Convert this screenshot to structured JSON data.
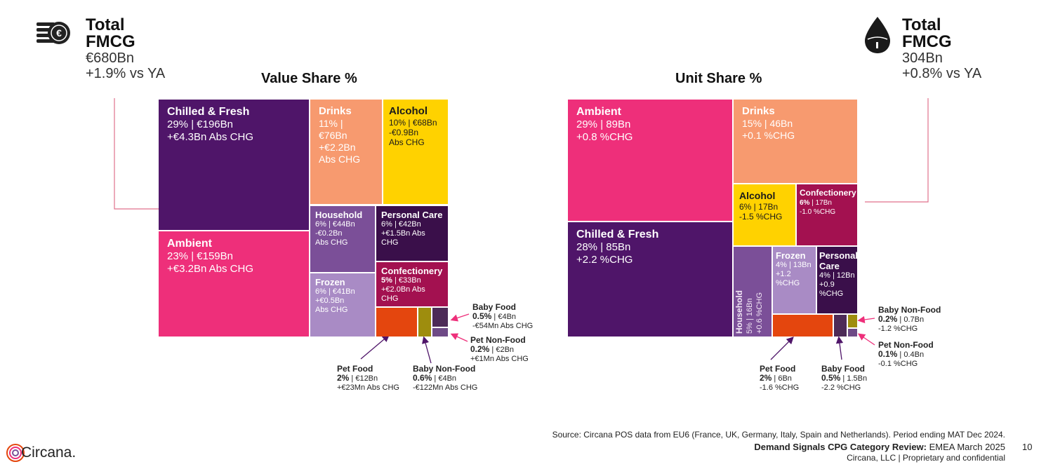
{
  "chart_data": [
    {
      "type": "treemap",
      "title": "Value Share %",
      "header": {
        "title_line1": "Total",
        "title_line2": "FMCG",
        "total": "€680Bn",
        "change": "+1.9% vs YA"
      },
      "items": [
        {
          "id": "chilled",
          "name": "Chilled & Fresh",
          "share_pct": 29,
          "share_label": "29%",
          "value_bn": 196,
          "value_label": "€196Bn",
          "change_label": "+€4.3Bn Abs CHG",
          "color": "#4f1569"
        },
        {
          "id": "ambient",
          "name": "Ambient",
          "share_pct": 23,
          "share_label": "23%",
          "value_bn": 159,
          "value_label": "€159Bn",
          "change_label": "+€3.2Bn Abs CHG",
          "color": "#ee2f7a"
        },
        {
          "id": "drinks",
          "name": "Drinks",
          "share_pct": 11,
          "share_label": "11%",
          "value_bn": 76,
          "value_label": "€76Bn",
          "change_label": "+€2.2Bn",
          "change_label2": "Abs CHG",
          "color": "#f79a6f"
        },
        {
          "id": "alcohol",
          "name": "Alcohol",
          "share_pct": 10,
          "share_label": "10%",
          "value_bn": 68,
          "value_label": "€68Bn",
          "change_label": "-€0.9Bn",
          "change_label2": "Abs CHG",
          "color": "#ffd200"
        },
        {
          "id": "household",
          "name": "Household",
          "share_pct": 6,
          "share_label": "6%",
          "value_bn": 44,
          "value_label": "€44Bn",
          "change_label": "-€0.2Bn",
          "change_label2": "Abs CHG",
          "color": "#7b4f98"
        },
        {
          "id": "personal",
          "name": "Personal Care",
          "share_pct": 6,
          "share_label": "6%",
          "value_bn": 42,
          "value_label": "€42Bn",
          "change_label": "+€1.5Bn Abs CHG",
          "color": "#3a0f4a"
        },
        {
          "id": "frozen",
          "name": "Frozen",
          "share_pct": 6,
          "share_label": "6%",
          "value_bn": 41,
          "value_label": "€41Bn",
          "change_label": "+€0.5Bn",
          "change_label2": "Abs CHG",
          "color": "#a98bc5"
        },
        {
          "id": "confectionery",
          "name": "Confectionery",
          "share_pct": 5,
          "share_label": "5%",
          "value_bn": 33,
          "value_label": "€33Bn",
          "change_label": "+€2.0Bn Abs CHG",
          "color": "#a31150"
        },
        {
          "id": "petfood",
          "name": "Pet Food",
          "share_pct": 2,
          "share_label": "2%",
          "value_bn": 12,
          "value_label": "€12Bn",
          "change_label": "+€23Mn Abs CHG",
          "color": "#e4460e"
        },
        {
          "id": "babynonfood",
          "name": "Baby Non-Food",
          "share_pct": 0.6,
          "share_label": "0.6%",
          "value_bn": 4,
          "value_label": "€4Bn",
          "change_label": "-€122Mn Abs CHG",
          "color": "#9e8d0e"
        },
        {
          "id": "babyfood",
          "name": "Baby Food",
          "share_pct": 0.5,
          "share_label": "0.5%",
          "value_bn": 4,
          "value_label": "€4Bn",
          "change_label": "-€54Mn Abs CHG",
          "color": "#4d2b57"
        },
        {
          "id": "petnonfood",
          "name": "Pet Non-Food",
          "share_pct": 0.2,
          "share_label": "0.2%",
          "value_bn": 2,
          "value_label": "€2Bn",
          "change_label": "+€1Mn Abs CHG",
          "color": "#6e4a86"
        }
      ]
    },
    {
      "type": "treemap",
      "title": "Unit Share %",
      "header": {
        "title_line1": "Total",
        "title_line2": "FMCG",
        "total": "304Bn",
        "change": "+0.8% vs YA"
      },
      "items": [
        {
          "id": "ambient",
          "name": "Ambient",
          "share_pct": 29,
          "share_label": "29%",
          "units_bn": 89,
          "units_label": "89Bn",
          "change_label": "+0.8 %CHG",
          "color": "#ee2f7a"
        },
        {
          "id": "chilled",
          "name": "Chilled & Fresh",
          "share_pct": 28,
          "share_label": "28%",
          "units_bn": 85,
          "units_label": "85Bn",
          "change_label": "+2.2 %CHG",
          "color": "#4f1569"
        },
        {
          "id": "drinks",
          "name": "Drinks",
          "share_pct": 15,
          "share_label": "15%",
          "units_bn": 46,
          "units_label": "46Bn",
          "change_label": "+0.1 %CHG",
          "color": "#f79a6f"
        },
        {
          "id": "alcohol",
          "name": "Alcohol",
          "share_pct": 6,
          "share_label": "6%",
          "units_bn": 17,
          "units_label": "17Bn",
          "change_label": "-1.5 %CHG",
          "color": "#ffd200"
        },
        {
          "id": "confectionery",
          "name": "Confectionery",
          "share_pct": 6,
          "share_label": "6%",
          "units_bn": 17,
          "units_label": "17Bn",
          "change_label": "-1.0 %CHG",
          "color": "#a31150"
        },
        {
          "id": "household",
          "name": "Household",
          "share_pct": 5,
          "share_label": "5%",
          "units_bn": 16,
          "units_label": "16Bn",
          "change_label": "+0.6 %CHG",
          "color": "#7b4f98"
        },
        {
          "id": "frozen",
          "name": "Frozen",
          "share_pct": 4,
          "share_label": "4%",
          "units_bn": 13,
          "units_label": "13Bn",
          "change_label": "+1.2 %CHG",
          "color": "#a98bc5"
        },
        {
          "id": "personal",
          "name": "Personal Care",
          "name_line1": "Personal",
          "name_line2": "Care",
          "share_pct": 4,
          "share_label": "4%",
          "units_bn": 12,
          "units_label": "12Bn",
          "change_label": "+0.9 %CHG",
          "color": "#3a0f4a"
        },
        {
          "id": "petfood",
          "name": "Pet Food",
          "share_pct": 2,
          "share_label": "2%",
          "units_bn": 6,
          "units_label": "6Bn",
          "change_label": "-1.6 %CHG",
          "color": "#e4460e"
        },
        {
          "id": "babyfood",
          "name": "Baby Food",
          "share_pct": 0.5,
          "share_label": "0.5%",
          "units_bn": 1.5,
          "units_label": "1.5Bn",
          "change_label": "-2.2 %CHG",
          "color": "#4d2b57"
        },
        {
          "id": "babynonfood",
          "name": "Baby Non-Food",
          "share_pct": 0.2,
          "share_label": "0.2%",
          "units_bn": 0.7,
          "units_label": "0.7Bn",
          "change_label": "-1.2 %CHG",
          "color": "#9e8d0e"
        },
        {
          "id": "petnonfood",
          "name": "Pet Non-Food",
          "share_pct": 0.1,
          "share_label": "0.1%",
          "units_bn": 0.4,
          "units_label": "0.4Bn",
          "change_label": "-0.1 %CHG",
          "color": "#6e4a86"
        }
      ]
    }
  ],
  "footer": {
    "source": "Source: Circana POS data from EU6 (France, UK, Germany, Italy, Spain and Netherlands). Period ending MAT Dec 2024.",
    "report_bold": "Demand Signals CPG Category Review:",
    "report_rest": " EMEA March 2025",
    "confidential": "Circana, LLC  |  Proprietary and confidential",
    "page_number": "10",
    "logo_text": "Circana."
  },
  "colors": {
    "connector": "#e0718c",
    "arrow": "#4f1569",
    "arrow_pink": "#ee2f7a"
  },
  "icons": {
    "left_header": "euro-coins-icon",
    "right_header": "water-drop-icon",
    "logo": "circana-logo-icon"
  }
}
